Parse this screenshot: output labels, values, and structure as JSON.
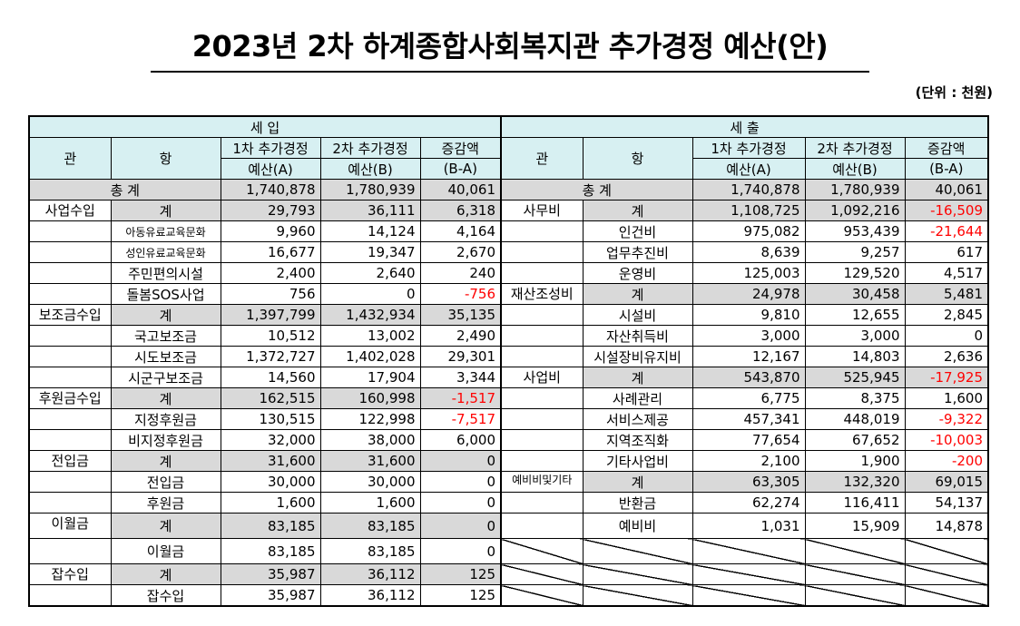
{
  "title": "2023년 2차 하계종합사회복지관 추가경정 예산(안)",
  "unit": "(단위 : 천원)",
  "headers": {
    "income": "세      입",
    "expense": "세         출",
    "gwan": "관",
    "hang": "항",
    "first": "1차 추가경정",
    "first_sub": "예산(A)",
    "second": "2차 추가경정",
    "second_sub": "예산(B)",
    "diff": "증감액",
    "diff_sub": "(B-A)"
  },
  "income_total": {
    "label": "총  계",
    "a": "1,740,878",
    "b": "1,780,939",
    "diff": "40,061"
  },
  "expense_total": {
    "label": "총  계",
    "a": "1,740,878",
    "b": "1,780,939",
    "diff": "40,061"
  },
  "income_rows": [
    {
      "gwan": "사업수입",
      "hang": "계",
      "a": "29,793",
      "b": "36,111",
      "diff": "6,318"
    },
    {
      "gwan": "",
      "hang": "아동유료교육문화",
      "a": "9,960",
      "b": "14,124",
      "diff": "4,164"
    },
    {
      "gwan": "",
      "hang": "성인유료교육문화",
      "a": "16,677",
      "b": "19,347",
      "diff": "2,670"
    },
    {
      "gwan": "",
      "hang": "주민편의시설",
      "a": "2,400",
      "b": "2,640",
      "diff": "240"
    },
    {
      "gwan": "",
      "hang": "돌봄SOS사업",
      "a": "756",
      "b": "0",
      "diff": "-756"
    },
    {
      "gwan": "보조금수입",
      "hang": "계",
      "a": "1,397,799",
      "b": "1,432,934",
      "diff": "35,135"
    },
    {
      "gwan": "",
      "hang": "국고보조금",
      "a": "10,512",
      "b": "13,002",
      "diff": "2,490"
    },
    {
      "gwan": "",
      "hang": "시도보조금",
      "a": "1,372,727",
      "b": "1,402,028",
      "diff": "29,301"
    },
    {
      "gwan": "",
      "hang": "시군구보조금",
      "a": "14,560",
      "b": "17,904",
      "diff": "3,344"
    },
    {
      "gwan": "후원금수입",
      "hang": "계",
      "a": "162,515",
      "b": "160,998",
      "diff": "-1,517"
    },
    {
      "gwan": "",
      "hang": "지정후원금",
      "a": "130,515",
      "b": "122,998",
      "diff": "-7,517"
    },
    {
      "gwan": "",
      "hang": "비지정후원금",
      "a": "32,000",
      "b": "38,000",
      "diff": "6,000"
    },
    {
      "gwan": "전입금",
      "hang": "계",
      "a": "31,600",
      "b": "31,600",
      "diff": "0"
    },
    {
      "gwan": "",
      "hang": "전입금",
      "a": "30,000",
      "b": "30,000",
      "diff": "0"
    },
    {
      "gwan": "",
      "hang": "후원금",
      "a": "1,600",
      "b": "1,600",
      "diff": "0"
    },
    {
      "gwan": "이월금",
      "hang": "계",
      "a": "83,185",
      "b": "83,185",
      "diff": "0"
    },
    {
      "gwan": "",
      "hang": "이월금",
      "a": "83,185",
      "b": "83,185",
      "diff": "0"
    },
    {
      "gwan": "잡수입",
      "hang": "계",
      "a": "35,987",
      "b": "36,112",
      "diff": "125"
    },
    {
      "gwan": "",
      "hang": "잡수입",
      "a": "35,987",
      "b": "36,112",
      "diff": "125"
    }
  ],
  "expense_rows": [
    {
      "gwan": "사무비",
      "hang": "계",
      "a": "1,108,725",
      "b": "1,092,216",
      "diff": "-16,509"
    },
    {
      "gwan": "",
      "hang": "인건비",
      "a": "975,082",
      "b": "953,439",
      "diff": "-21,644"
    },
    {
      "gwan": "",
      "hang": "업무추진비",
      "a": "8,639",
      "b": "9,257",
      "diff": "617"
    },
    {
      "gwan": "",
      "hang": "운영비",
      "a": "125,003",
      "b": "129,520",
      "diff": "4,517"
    },
    {
      "gwan": "재산조성비",
      "hang": "계",
      "a": "24,978",
      "b": "30,458",
      "diff": "5,481"
    },
    {
      "gwan": "",
      "hang": "시설비",
      "a": "9,810",
      "b": "12,655",
      "diff": "2,845"
    },
    {
      "gwan": "",
      "hang": "자산취득비",
      "a": "3,000",
      "b": "3,000",
      "diff": "0"
    },
    {
      "gwan": "",
      "hang": "시설장비유지비",
      "a": "12,167",
      "b": "14,803",
      "diff": "2,636"
    },
    {
      "gwan": "사업비",
      "hang": "계",
      "a": "543,870",
      "b": "525,945",
      "diff": "-17,925"
    },
    {
      "gwan": "",
      "hang": "사례관리",
      "a": "6,775",
      "b": "8,375",
      "diff": "1,600"
    },
    {
      "gwan": "",
      "hang": "서비스제공",
      "a": "457,341",
      "b": "448,019",
      "diff": "-9,322"
    },
    {
      "gwan": "",
      "hang": "지역조직화",
      "a": "77,654",
      "b": "67,652",
      "diff": "-10,003"
    },
    {
      "gwan": "",
      "hang": "기타사업비",
      "a": "2,100",
      "b": "1,900",
      "diff": "-200"
    },
    {
      "gwan": "예비비및기타",
      "hang": "계",
      "a": "63,305",
      "b": "132,320",
      "diff": "69,015"
    },
    {
      "gwan": "",
      "hang": "반환금",
      "a": "62,274",
      "b": "116,411",
      "diff": "54,137"
    },
    {
      "gwan": "",
      "hang": "예비비",
      "a": "1,031",
      "b": "15,909",
      "diff": "14,878"
    }
  ]
}
